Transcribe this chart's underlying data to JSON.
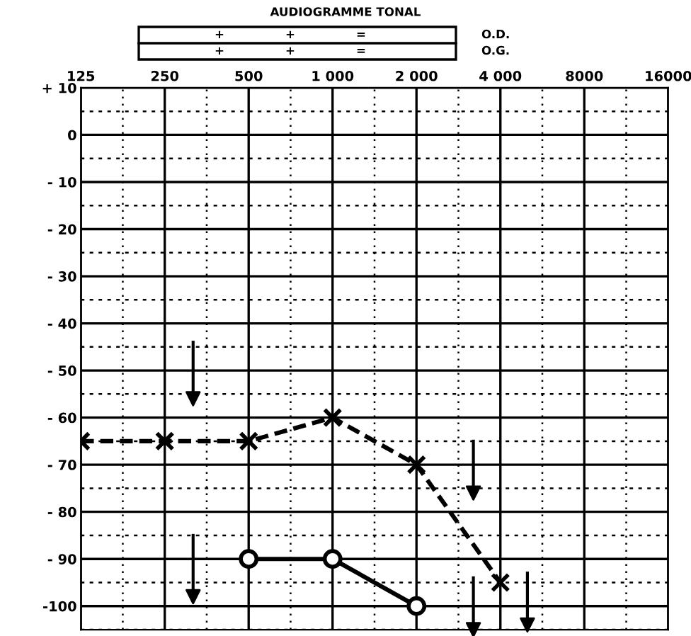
{
  "chart_data": {
    "type": "line",
    "title": "AUDIOGRAMME TONAL",
    "annotations": [
      "+",
      "+",
      "=",
      "O.D.",
      "+",
      "+",
      "=",
      "O.G."
    ],
    "log": "x",
    "xlim": [
      125,
      16000
    ],
    "xticks": [
      125,
      250,
      500,
      {
        "value": 1000,
        "label": "1 000"
      },
      {
        "value": 2000,
        "label": "2 000"
      },
      {
        "value": 4000,
        "label": "4 000"
      },
      8000,
      16000
    ],
    "ylim": [
      -105,
      10
    ],
    "yticks": [
      {
        "value": 10,
        "label": "+ 10"
      },
      0,
      {
        "value": -10,
        "label": "- 10"
      },
      {
        "value": -20,
        "label": "- 20"
      },
      {
        "value": -30,
        "label": "- 30"
      },
      {
        "value": -40,
        "label": "- 40"
      },
      {
        "value": -50,
        "label": "- 50"
      },
      {
        "value": -60,
        "label": "- 60"
      },
      {
        "value": -70,
        "label": "- 70"
      },
      {
        "value": -80,
        "label": "- 80"
      },
      {
        "value": -90,
        "label": "- 90"
      },
      -100
    ],
    "grid": true,
    "legend": false,
    "series": [
      {
        "type": "line",
        "color": "#000000",
        "marker": "cross",
        "line_style": "dashed",
        "x": [
          125,
          250,
          500,
          1000,
          2000,
          4000
        ],
        "values": [
          -65,
          -65,
          -65,
          -60,
          -70,
          -95
        ]
      },
      {
        "type": "line",
        "color": "#000000",
        "marker": "circle",
        "line_style": "solid",
        "x": [
          500,
          1000,
          2000
        ],
        "values": [
          -90,
          -90,
          -100
        ]
      },
      {
        "type": "scatter",
        "color": "#000000",
        "marker": "triangle",
        "x": [
          316,
          3200,
          5000,
          316,
          3200
        ],
        "values": [
          -56,
          -76,
          -104,
          -98,
          -105
        ],
        "errors": [
          [
            -56,
            -44
          ],
          [
            -76,
            -65
          ],
          [
            -104,
            -93
          ],
          [
            -98,
            -85
          ],
          [
            -105,
            -94
          ]
        ]
      }
    ]
  }
}
